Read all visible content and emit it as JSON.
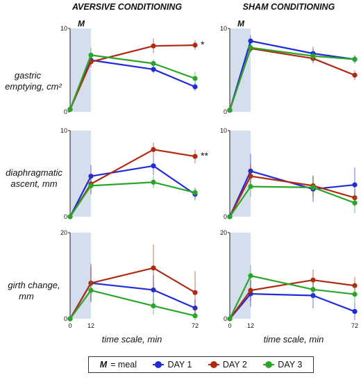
{
  "columns": [
    {
      "title": "AVERSIVE CONDITIONING"
    },
    {
      "title": "SHAM CONDITIONING"
    }
  ],
  "rows": [
    {
      "label_lines": [
        "gastric",
        "emptying, cm²"
      ]
    },
    {
      "label_lines": [
        "diaphragmatic",
        "ascent, mm"
      ]
    },
    {
      "label_lines": [
        "girth change,",
        "mm"
      ]
    }
  ],
  "meal_marker": "M",
  "xlabel": "time scale, min",
  "x_ticks": [
    "0",
    "12",
    "72"
  ],
  "legend": {
    "meal_key": "M",
    "meal_text": " = meal",
    "series": [
      {
        "name": "DAY 1",
        "color": "#1f2bd6"
      },
      {
        "name": "DAY 2",
        "color": "#b02a12"
      },
      {
        "name": "DAY 3",
        "color": "#2aa52a"
      }
    ]
  },
  "chart_data": [
    {
      "type": "line",
      "panel": "aversive-gastric",
      "x": [
        0,
        12,
        48,
        72
      ],
      "ylim": [
        0,
        10
      ],
      "y_ticks": [
        "0",
        "10"
      ],
      "meal_window": [
        0,
        12
      ],
      "annotation": "*",
      "series": [
        {
          "name": "DAY 1",
          "color": "#1f2bd6",
          "values": [
            0.3,
            6.2,
            5.1,
            3.0
          ],
          "err": [
            0,
            0.5,
            0.5,
            0.5
          ]
        },
        {
          "name": "DAY 2",
          "color": "#b02a12",
          "values": [
            0.3,
            6.0,
            7.9,
            8.0
          ],
          "err": [
            0,
            0.7,
            0.9,
            0.6
          ]
        },
        {
          "name": "DAY 3",
          "color": "#2aa52a",
          "values": [
            0.3,
            6.8,
            5.8,
            4.0
          ],
          "err": [
            0,
            0.9,
            0.5,
            0.8
          ]
        }
      ]
    },
    {
      "type": "line",
      "panel": "sham-gastric",
      "x": [
        0,
        12,
        48,
        72
      ],
      "ylim": [
        0,
        10
      ],
      "y_ticks": [
        "0",
        "10"
      ],
      "meal_window": [
        0,
        12
      ],
      "series": [
        {
          "name": "DAY 1",
          "color": "#1f2bd6",
          "values": [
            0.2,
            8.5,
            7.0,
            6.3
          ],
          "err": [
            0,
            0.7,
            0.8,
            0.5
          ]
        },
        {
          "name": "DAY 2",
          "color": "#b02a12",
          "values": [
            0.2,
            7.6,
            6.4,
            4.4
          ],
          "err": [
            0,
            0.5,
            0.6,
            0.6
          ]
        },
        {
          "name": "DAY 3",
          "color": "#2aa52a",
          "values": [
            0.2,
            7.7,
            6.7,
            6.3
          ],
          "err": [
            0,
            0.5,
            0.8,
            0.4
          ]
        }
      ]
    },
    {
      "type": "line",
      "panel": "aversive-diaphragmatic",
      "x": [
        0,
        12,
        48,
        72
      ],
      "ylim": [
        0,
        10
      ],
      "y_ticks": [
        "0",
        "10"
      ],
      "meal_window": [
        0,
        12
      ],
      "annotation": "**",
      "series": [
        {
          "name": "DAY 1",
          "color": "#1f2bd6",
          "values": [
            0,
            4.7,
            5.9,
            2.6
          ],
          "err": [
            0,
            1.3,
            1.1,
            0.7
          ]
        },
        {
          "name": "DAY 2",
          "color": "#b02a12",
          "values": [
            0,
            3.8,
            7.8,
            7.0
          ],
          "err": [
            0,
            1.2,
            0.8,
            0.8
          ]
        },
        {
          "name": "DAY 3",
          "color": "#2aa52a",
          "values": [
            0,
            3.6,
            4.0,
            2.8
          ],
          "err": [
            0,
            0.8,
            0.7,
            0.6
          ]
        }
      ]
    },
    {
      "type": "line",
      "panel": "sham-diaphragmatic",
      "x": [
        0,
        12,
        48,
        72
      ],
      "ylim": [
        0,
        10
      ],
      "y_ticks": [
        "0",
        "10"
      ],
      "meal_window": [
        0,
        12
      ],
      "series": [
        {
          "name": "DAY 1",
          "color": "#1f2bd6",
          "values": [
            0,
            5.3,
            3.2,
            3.7
          ],
          "err": [
            0,
            2.0,
            1.5,
            2.0
          ]
        },
        {
          "name": "DAY 2",
          "color": "#b02a12",
          "values": [
            0,
            4.7,
            3.6,
            2.2
          ],
          "err": [
            0,
            1.4,
            1.2,
            1.0
          ]
        },
        {
          "name": "DAY 3",
          "color": "#2aa52a",
          "values": [
            0,
            3.5,
            3.4,
            1.6
          ],
          "err": [
            0,
            1.2,
            1.3,
            1.2
          ]
        }
      ]
    },
    {
      "type": "line",
      "panel": "aversive-girth",
      "x": [
        0,
        12,
        48,
        72
      ],
      "ylim": [
        0,
        20
      ],
      "y_ticks": [
        "0",
        "20"
      ],
      "meal_window": [
        0,
        12
      ],
      "series": [
        {
          "name": "DAY 1",
          "color": "#1f2bd6",
          "values": [
            0,
            8.3,
            6.7,
            2.5
          ],
          "err": [
            0,
            4.5,
            3.5,
            2.0
          ]
        },
        {
          "name": "DAY 2",
          "color": "#b02a12",
          "values": [
            0,
            8.3,
            11.8,
            6.1
          ],
          "err": [
            0,
            3.8,
            5.5,
            5.0
          ]
        },
        {
          "name": "DAY 3",
          "color": "#2aa52a",
          "values": [
            0,
            6.6,
            3.0,
            0.7
          ],
          "err": [
            0,
            2.5,
            2.0,
            1.0
          ]
        }
      ]
    },
    {
      "type": "line",
      "panel": "sham-girth",
      "x": [
        0,
        12,
        48,
        72
      ],
      "ylim": [
        0,
        20
      ],
      "y_ticks": [
        "0",
        "20"
      ],
      "meal_window": [
        0,
        12
      ],
      "series": [
        {
          "name": "DAY 1",
          "color": "#1f2bd6",
          "values": [
            0,
            5.8,
            5.4,
            1.7
          ],
          "err": [
            0,
            3.0,
            3.0,
            2.0
          ]
        },
        {
          "name": "DAY 2",
          "color": "#b02a12",
          "values": [
            0,
            6.6,
            9.0,
            7.7
          ],
          "err": [
            0,
            2.5,
            2.5,
            2.0
          ]
        },
        {
          "name": "DAY 3",
          "color": "#2aa52a",
          "values": [
            0,
            10.0,
            6.8,
            5.7
          ],
          "err": [
            0,
            2.5,
            2.0,
            2.0
          ]
        }
      ]
    }
  ]
}
